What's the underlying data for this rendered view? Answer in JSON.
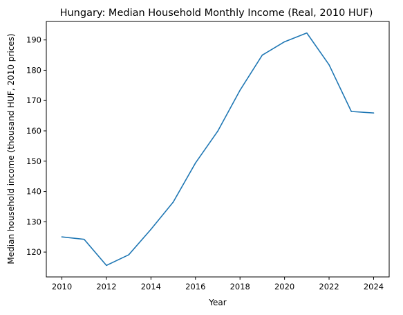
{
  "chart_data": {
    "type": "line",
    "title": "Hungary: Median Household Monthly Income (Real, 2010 HUF)",
    "xlabel": "Year",
    "ylabel": "Median household income (thousand HUF, 2010 prices)",
    "x": [
      2010,
      2011,
      2012,
      2013,
      2014,
      2015,
      2016,
      2017,
      2018,
      2019,
      2020,
      2021,
      2022,
      2023,
      2024
    ],
    "series": [
      {
        "values": [
          125.0,
          124.2,
          115.6,
          119.1,
          127.5,
          136.5,
          149.4,
          159.9,
          173.4,
          185.0,
          189.4,
          192.3,
          181.8,
          166.4,
          165.9
        ],
        "color": "#1f77b4"
      }
    ],
    "xlim": [
      2009.3,
      2024.7
    ],
    "ylim": [
      111.8,
      196.1
    ],
    "xticks": [
      2010,
      2012,
      2014,
      2016,
      2018,
      2020,
      2022,
      2024
    ],
    "yticks": [
      120,
      130,
      140,
      150,
      160,
      170,
      180,
      190
    ],
    "grid": false,
    "legend": "none"
  }
}
